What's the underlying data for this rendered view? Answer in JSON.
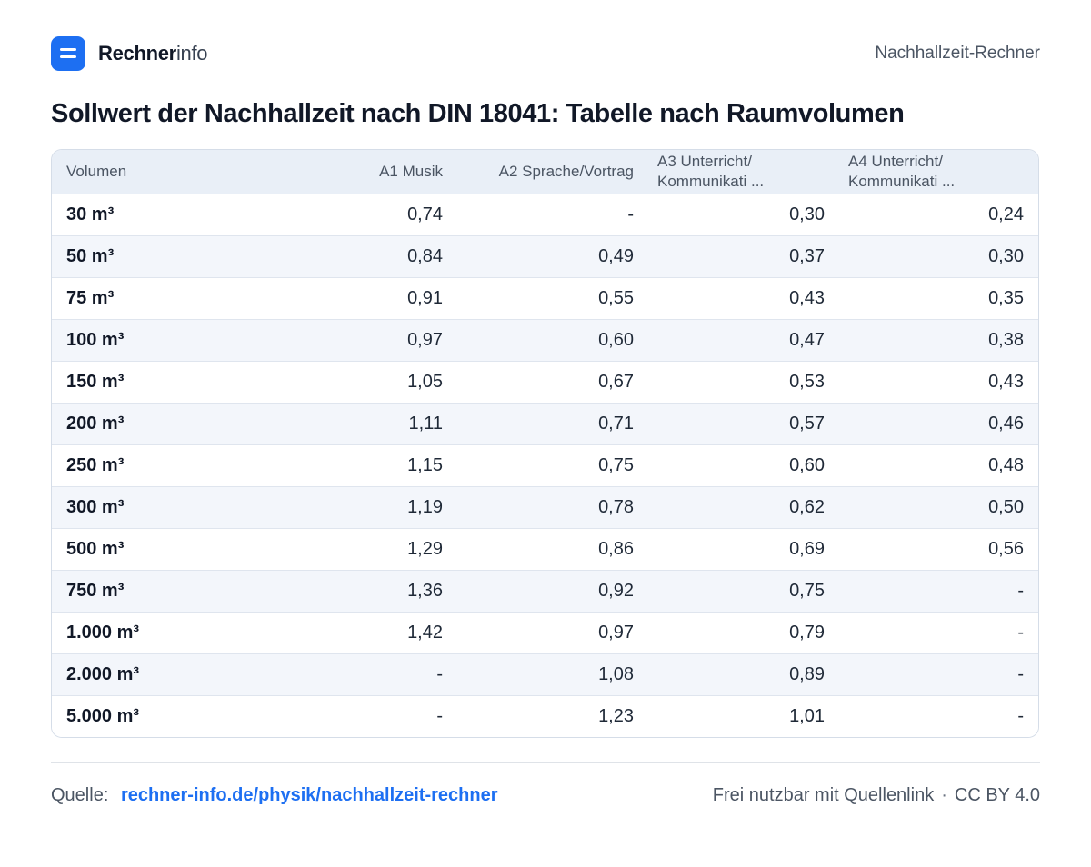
{
  "header": {
    "brand_strong": "Rechner",
    "brand_light": "info",
    "tool_name": "Nachhallzeit-Rechner"
  },
  "title": "Sollwert der Nachhallzeit nach DIN 18041: Tabelle nach Raumvolumen",
  "table": {
    "columns": [
      "Volumen",
      "A1 Musik",
      "A2 Sprache/Vortrag",
      "A3 Unterricht/ Kommunikati ...",
      "A4 Unterricht/ Kommunikati ..."
    ],
    "rows": [
      [
        "30 m³",
        "0,74",
        "-",
        "0,30",
        "0,24"
      ],
      [
        "50 m³",
        "0,84",
        "0,49",
        "0,37",
        "0,30"
      ],
      [
        "75 m³",
        "0,91",
        "0,55",
        "0,43",
        "0,35"
      ],
      [
        "100 m³",
        "0,97",
        "0,60",
        "0,47",
        "0,38"
      ],
      [
        "150 m³",
        "1,05",
        "0,67",
        "0,53",
        "0,43"
      ],
      [
        "200 m³",
        "1,11",
        "0,71",
        "0,57",
        "0,46"
      ],
      [
        "250 m³",
        "1,15",
        "0,75",
        "0,60",
        "0,48"
      ],
      [
        "300 m³",
        "1,19",
        "0,78",
        "0,62",
        "0,50"
      ],
      [
        "500 m³",
        "1,29",
        "0,86",
        "0,69",
        "0,56"
      ],
      [
        "750 m³",
        "1,36",
        "0,92",
        "0,75",
        "-"
      ],
      [
        "1.000 m³",
        "1,42",
        "0,97",
        "0,79",
        "-"
      ],
      [
        "2.000 m³",
        "-",
        "1,08",
        "0,89",
        "-"
      ],
      [
        "5.000 m³",
        "-",
        "1,23",
        "1,01",
        "-"
      ]
    ]
  },
  "footer": {
    "source_label": "Quelle:",
    "source_link": "rechner-info.de/physik/nachhallzeit-rechner",
    "license_text": "Frei nutzbar mit Quellenlink",
    "separator": "·",
    "license_name": "CC BY 4.0"
  },
  "colors": {
    "accent": "#1d6ff2",
    "header_bg": "#e9eff7",
    "row_alt_bg": "#f3f6fb"
  }
}
